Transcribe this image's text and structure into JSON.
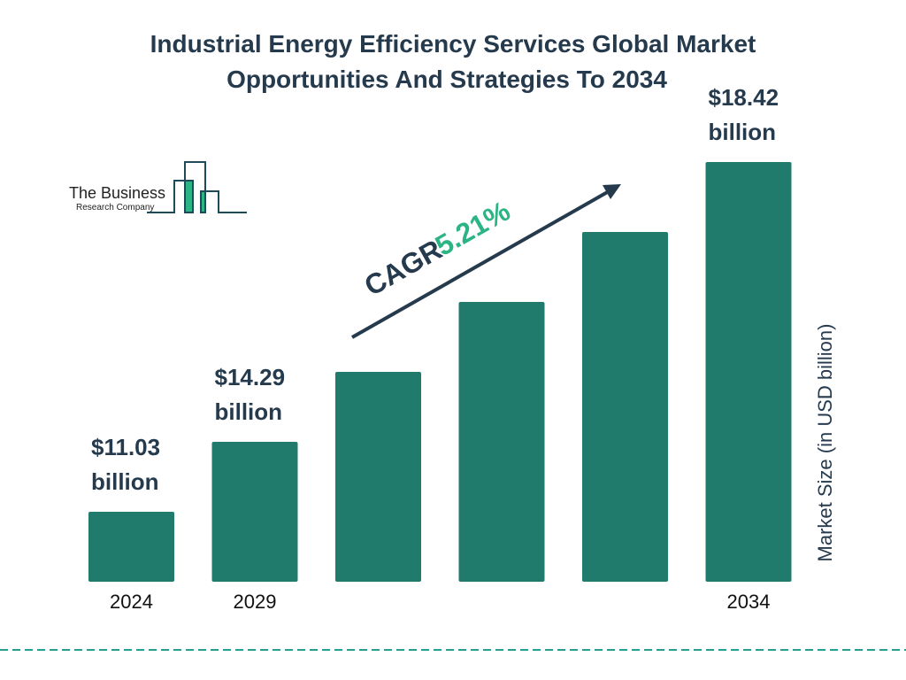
{
  "chart_data": {
    "type": "bar",
    "title_lines": [
      "Industrial Energy Efficiency Services Global Market",
      "Opportunities And Strategies To 2034"
    ],
    "categories": [
      "2024",
      "2029",
      "",
      "",
      "",
      "2034"
    ],
    "values": [
      11.03,
      14.29,
      null,
      null,
      null,
      18.42
    ],
    "data_labels": [
      {
        "index": 0,
        "line1": "$11.03",
        "line2": "billion"
      },
      {
        "index": 1,
        "line1": "$14.29",
        "line2": "billion"
      },
      {
        "index": 5,
        "line1": "$18.42",
        "line2": "billion"
      }
    ],
    "ylabel": "Market Size (in USD billion)",
    "xlabel": "",
    "grid": false,
    "annotation": {
      "label": "CAGR",
      "value": "5.21%"
    },
    "colors": {
      "bar": "#217b6c",
      "text": "#253a4d",
      "accent": "#2db484",
      "divider": "#2a9d8f"
    }
  },
  "logo": {
    "line1": "The Business",
    "line2": "Research Company"
  }
}
